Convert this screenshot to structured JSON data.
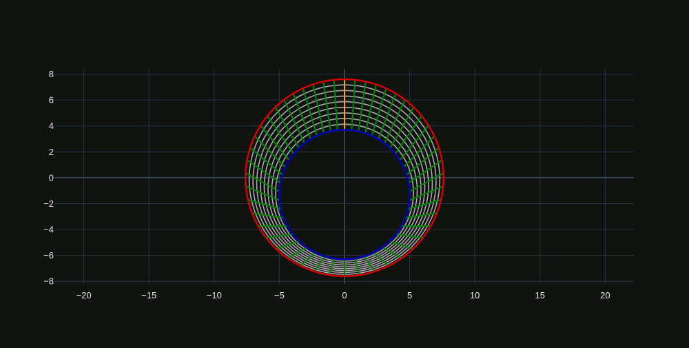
{
  "chart_data": {
    "type": "line",
    "title": "",
    "xlabel": "",
    "ylabel": "",
    "xlim": [
      -22.2,
      22.2
    ],
    "ylim": [
      -8.2,
      8.4
    ],
    "xticks": [
      -20,
      -15,
      -10,
      -5,
      0,
      5,
      10,
      15,
      20
    ],
    "yticks": [
      -8,
      -6,
      -4,
      -2,
      0,
      2,
      4,
      6,
      8
    ],
    "grid": true,
    "legend": "none",
    "outer_circle": {
      "center": [
        0,
        0
      ],
      "radius": 7.6,
      "color": "#dd0000"
    },
    "inner_circle": {
      "center": [
        0,
        -1.3
      ],
      "radius": 5.0,
      "color": "#0000cc"
    },
    "cut_line": {
      "x": [
        0,
        0
      ],
      "y": [
        3.7,
        7.6
      ],
      "color": "#ffa500"
    },
    "intermediate_curves": {
      "count": 8,
      "color": "#aaaaaa"
    },
    "radial_lines": {
      "count": 48,
      "color": "#008800"
    },
    "colors": {
      "background": "#111311",
      "grid": "#283442",
      "zeroline": "#35424f",
      "tick_text": "#e8e8e8"
    }
  }
}
